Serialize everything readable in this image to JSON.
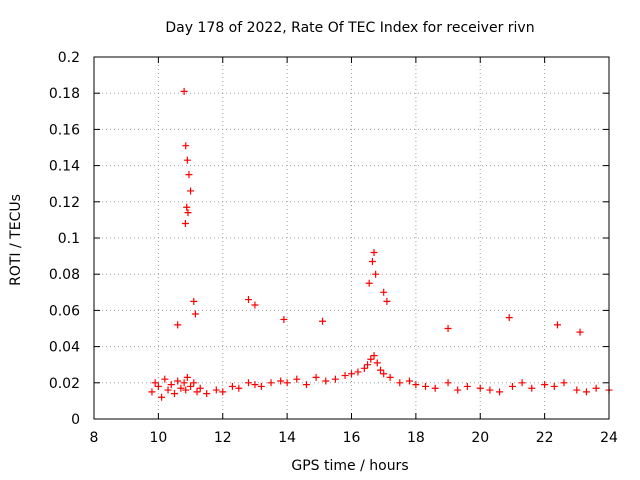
{
  "chart_data": {
    "type": "scatter",
    "title": "Day 178 of 2022, Rate Of TEC Index for receiver rivn",
    "xlabel": "GPS time / hours",
    "ylabel": "ROTI / TECUs",
    "xlim": [
      8,
      24
    ],
    "ylim": [
      0,
      0.2
    ],
    "x_ticks": [
      8,
      10,
      12,
      14,
      16,
      18,
      20,
      22,
      24
    ],
    "x_tick_labels": [
      "8",
      "10",
      "12",
      "14",
      "16",
      "18",
      "20",
      "22",
      "24"
    ],
    "y_ticks": [
      0,
      0.02,
      0.04,
      0.06,
      0.08,
      0.1,
      0.12,
      0.14,
      0.16,
      0.18,
      0.2
    ],
    "y_tick_labels": [
      "0",
      "0.02",
      "0.04",
      "0.06",
      "0.08",
      "0.1",
      "0.12",
      "0.14",
      "0.16",
      "0.18",
      "0.2"
    ],
    "grid": true,
    "marker": "+",
    "color": "#ff0000",
    "series": [
      {
        "name": "ROTI",
        "x": [
          9.8,
          9.9,
          10.0,
          10.1,
          10.2,
          10.3,
          10.4,
          10.5,
          10.6,
          10.7,
          10.8,
          10.85,
          10.9,
          11.0,
          11.1,
          11.2,
          11.3,
          11.5,
          11.8,
          12.0,
          12.3,
          12.5,
          12.8,
          13.0,
          13.2,
          13.5,
          13.8,
          14.0,
          14.3,
          14.6,
          14.9,
          15.2,
          15.5,
          15.8,
          16.0,
          16.2,
          16.4,
          16.5,
          16.6,
          16.7,
          16.8,
          16.9,
          17.0,
          17.2,
          17.5,
          17.8,
          18.0,
          18.3,
          18.6,
          19.0,
          19.3,
          19.6,
          20.0,
          20.3,
          20.6,
          21.0,
          21.3,
          21.6,
          22.0,
          22.3,
          22.6,
          23.0,
          23.3,
          23.6,
          24.0,
          10.8,
          10.85,
          10.9,
          10.95,
          11.0,
          10.88,
          10.92,
          10.84,
          10.6,
          11.1,
          11.15,
          12.8,
          13.0,
          13.9,
          15.1,
          16.55,
          16.65,
          16.7,
          16.75,
          17.0,
          17.1,
          19.0,
          20.9,
          22.4,
          23.1
        ],
        "y": [
          0.015,
          0.02,
          0.018,
          0.012,
          0.022,
          0.016,
          0.019,
          0.014,
          0.021,
          0.017,
          0.02,
          0.016,
          0.023,
          0.018,
          0.02,
          0.015,
          0.017,
          0.014,
          0.016,
          0.015,
          0.018,
          0.017,
          0.02,
          0.019,
          0.018,
          0.02,
          0.021,
          0.02,
          0.022,
          0.019,
          0.023,
          0.021,
          0.022,
          0.024,
          0.025,
          0.026,
          0.028,
          0.03,
          0.033,
          0.035,
          0.031,
          0.027,
          0.025,
          0.023,
          0.02,
          0.021,
          0.019,
          0.018,
          0.017,
          0.02,
          0.016,
          0.018,
          0.017,
          0.016,
          0.015,
          0.018,
          0.02,
          0.017,
          0.019,
          0.018,
          0.02,
          0.016,
          0.015,
          0.017,
          0.016,
          0.181,
          0.151,
          0.143,
          0.135,
          0.126,
          0.117,
          0.114,
          0.108,
          0.052,
          0.065,
          0.058,
          0.066,
          0.063,
          0.055,
          0.054,
          0.075,
          0.087,
          0.092,
          0.08,
          0.07,
          0.065,
          0.05,
          0.056,
          0.052,
          0.048
        ]
      }
    ]
  }
}
